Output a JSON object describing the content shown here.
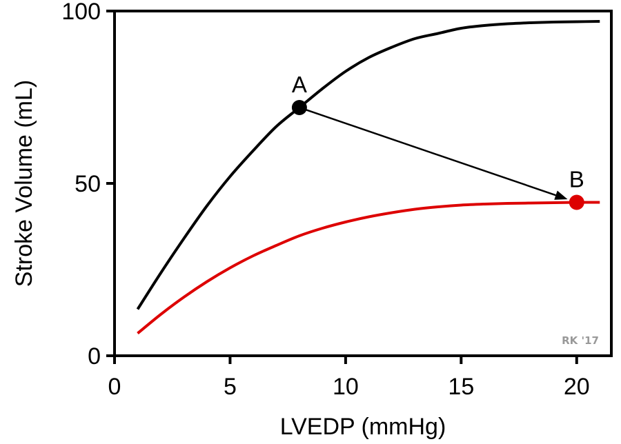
{
  "chart_data": {
    "type": "line",
    "xlabel": "LVEDP (mmHg)",
    "ylabel": "Stroke Volume (mL)",
    "xlim": [
      0,
      21.5
    ],
    "ylim": [
      0,
      100
    ],
    "x_ticks": [
      0,
      5,
      10,
      15,
      20
    ],
    "x_tick_labels": [
      "0",
      "5",
      "10",
      "15",
      "20"
    ],
    "y_ticks": [
      0,
      50,
      100
    ],
    "y_tick_labels": [
      "0",
      "50",
      "100"
    ],
    "grid": false,
    "series": [
      {
        "color": "#000000",
        "x": [
          1,
          2,
          3,
          4,
          5,
          6,
          7,
          8,
          9,
          10,
          11,
          12,
          13,
          14,
          15,
          16,
          17,
          18,
          19,
          20,
          21
        ],
        "y": [
          13.5,
          24,
          34,
          43.5,
          52,
          59.5,
          66.5,
          72,
          77.5,
          82.5,
          86.5,
          89.5,
          92,
          93.5,
          95,
          95.8,
          96.3,
          96.6,
          96.8,
          96.9,
          97
        ]
      },
      {
        "color": "#dd0000",
        "x": [
          1,
          2,
          3,
          4,
          5,
          6,
          7,
          8,
          9,
          10,
          11,
          12,
          13,
          14,
          15,
          16,
          17,
          18,
          19,
          20,
          21
        ],
        "y": [
          6.5,
          12,
          17,
          21.5,
          25.5,
          29,
          32,
          34.8,
          37,
          38.8,
          40.3,
          41.5,
          42.5,
          43.2,
          43.7,
          44,
          44.2,
          44.3,
          44.4,
          44.5,
          44.5
        ]
      }
    ],
    "points": [
      {
        "label": "A",
        "x": 8,
        "y": 72,
        "color": "#000000"
      },
      {
        "label": "B",
        "x": 20,
        "y": 44.5,
        "color": "#dd0000"
      }
    ],
    "arrow": {
      "from": "A",
      "to": "B",
      "color": "#000000"
    },
    "credit": "RK '17"
  }
}
